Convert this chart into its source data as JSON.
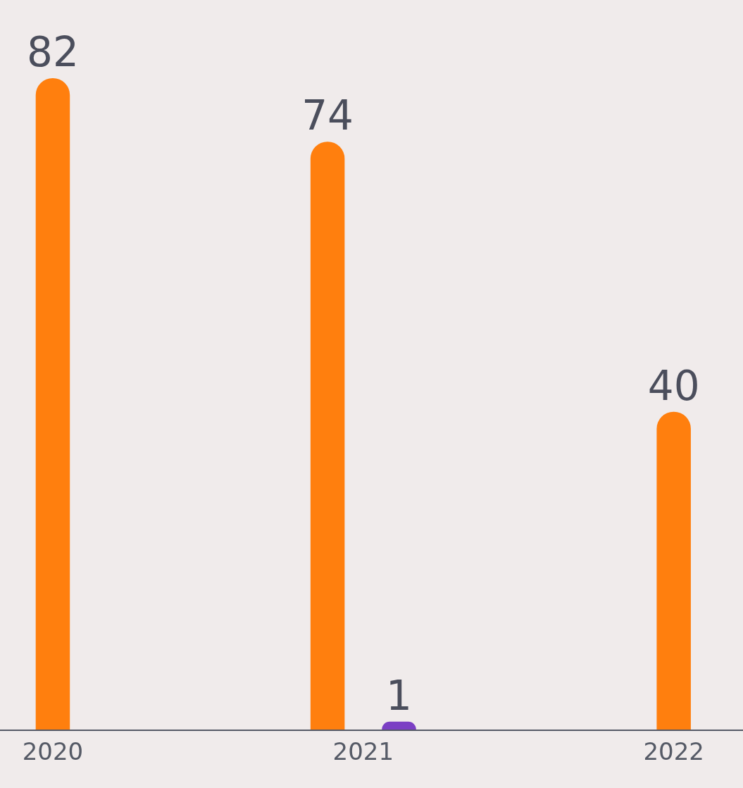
{
  "chart_data": {
    "type": "bar",
    "categories": [
      "2020",
      "2021",
      "2022"
    ],
    "series": [
      {
        "color": "#ff7f0e",
        "values": [
          82,
          74,
          40
        ]
      },
      {
        "color": "#7b3fc4",
        "values": [
          null,
          1,
          null
        ]
      }
    ],
    "data_labels": true,
    "grid": false
  }
}
